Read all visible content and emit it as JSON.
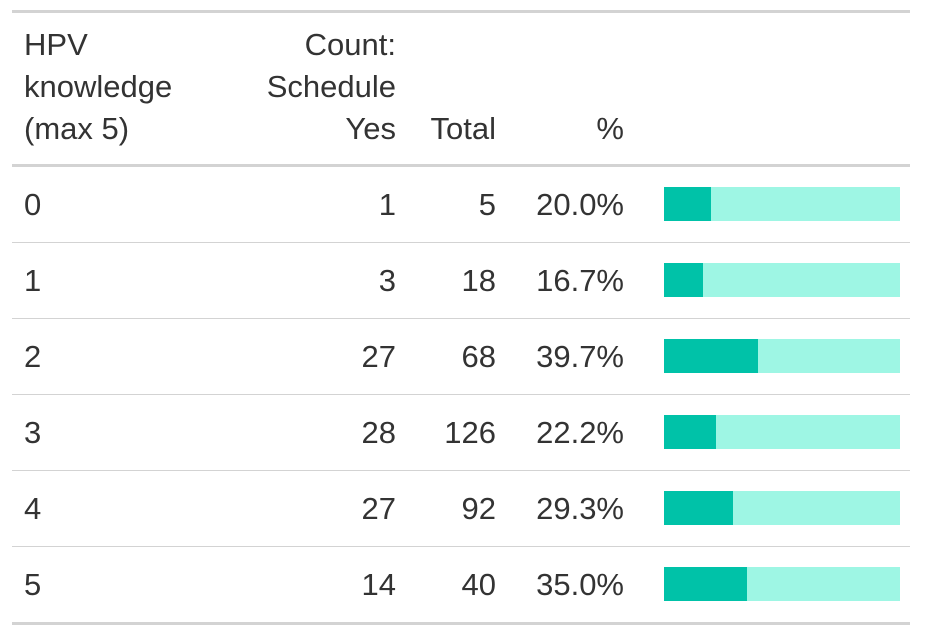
{
  "chart_data": {
    "type": "table",
    "columns": [
      "HPV knowledge (max 5)",
      "Count: Schedule Yes",
      "Total",
      "%",
      ""
    ],
    "header": {
      "knowledge": [
        "HPV",
        "knowledge",
        "(max 5)"
      ],
      "count": [
        "Count:",
        "Schedule",
        "Yes"
      ],
      "total": "Total",
      "pct": "%"
    },
    "rows": [
      {
        "knowledge": "0",
        "count": "1",
        "total": "5",
        "pct": "20.0%",
        "fraction": 0.2
      },
      {
        "knowledge": "1",
        "count": "3",
        "total": "18",
        "pct": "16.7%",
        "fraction": 0.167
      },
      {
        "knowledge": "2",
        "count": "27",
        "total": "68",
        "pct": "39.7%",
        "fraction": 0.397
      },
      {
        "knowledge": "3",
        "count": "28",
        "total": "126",
        "pct": "22.2%",
        "fraction": 0.222
      },
      {
        "knowledge": "4",
        "count": "27",
        "total": "92",
        "pct": "29.3%",
        "fraction": 0.293
      },
      {
        "knowledge": "5",
        "count": "14",
        "total": "40",
        "pct": "35.0%",
        "fraction": 0.35
      }
    ],
    "bar_colors": {
      "fill": "#00c2a8",
      "background": "#9ef6e4"
    }
  }
}
